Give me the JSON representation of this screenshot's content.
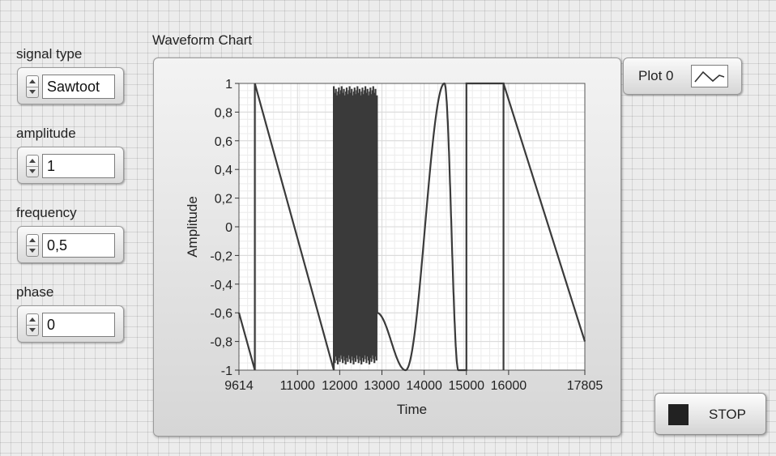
{
  "controls": [
    {
      "label": "signal type",
      "value": "Sawtoot"
    },
    {
      "label": "amplitude",
      "value": "1"
    },
    {
      "label": "frequency",
      "value": "0,5"
    },
    {
      "label": "phase",
      "value": "0"
    }
  ],
  "chart": {
    "title": "Waveform Chart"
  },
  "legend": {
    "plot_name": "Plot 0"
  },
  "stop_button": {
    "label": "STOP"
  },
  "colors": {
    "plot_line": "#3a3a3a",
    "plot_area": "#ffffff",
    "grid": "#d9d9d9",
    "stop_led": "#222222"
  },
  "icons": {
    "spinner_up": "triangle-up-icon",
    "spinner_down": "triangle-down-icon",
    "legend": "plot-line-icon"
  },
  "chart_data": {
    "type": "line",
    "title": "Waveform Chart",
    "xlabel": "Time",
    "ylabel": "Amplitude",
    "xlim": [
      9614,
      17805
    ],
    "ylim": [
      -1,
      1
    ],
    "x_ticks": [
      9614,
      11000,
      12000,
      13000,
      14000,
      15000,
      16000,
      17805
    ],
    "x_tick_labels": [
      "9614",
      "11000",
      "12000",
      "13000",
      "14000",
      "15000",
      "16000",
      "17805"
    ],
    "y_ticks": [
      1,
      0.8,
      0.6,
      0.4,
      0.2,
      0,
      -0.2,
      -0.4,
      -0.6,
      -0.8,
      -1
    ],
    "y_tick_labels": [
      "1",
      "0,8",
      "0,6",
      "0,4",
      "0,2",
      "0",
      "-0,2",
      "-0,4",
      "-0,6",
      "-0,8",
      "-1"
    ],
    "grid": true,
    "series": [
      {
        "segments": [
          {
            "kind": "sawtooth",
            "x_start": 9614,
            "x_end": 9990,
            "y_start": -0.6,
            "y_end": -1
          },
          {
            "kind": "jump",
            "x": 9990,
            "y_from": -1,
            "y_to": 1
          },
          {
            "kind": "sawtooth",
            "x_start": 9990,
            "x_end": 11860,
            "y_start": 1,
            "y_end": -1
          },
          {
            "kind": "noise",
            "x_start": 11860,
            "x_end": 12880,
            "y_min": -0.96,
            "y_max": 0.98
          },
          {
            "kind": "sine",
            "x_start": 12880,
            "x_end": 14810,
            "y_start": -0.6,
            "y_min": -1,
            "y_min_x": 13560,
            "y_max": 1,
            "y_max_x": 14480,
            "y_end": -1
          },
          {
            "kind": "square",
            "x_start": 14810,
            "x_end": 15880,
            "high_from": 15000,
            "high_to": 15880,
            "low": -1,
            "high": 1
          },
          {
            "kind": "sawtooth",
            "x_start": 15880,
            "x_end": 17805,
            "y_start": 1,
            "y_end": -0.8
          }
        ]
      }
    ]
  }
}
